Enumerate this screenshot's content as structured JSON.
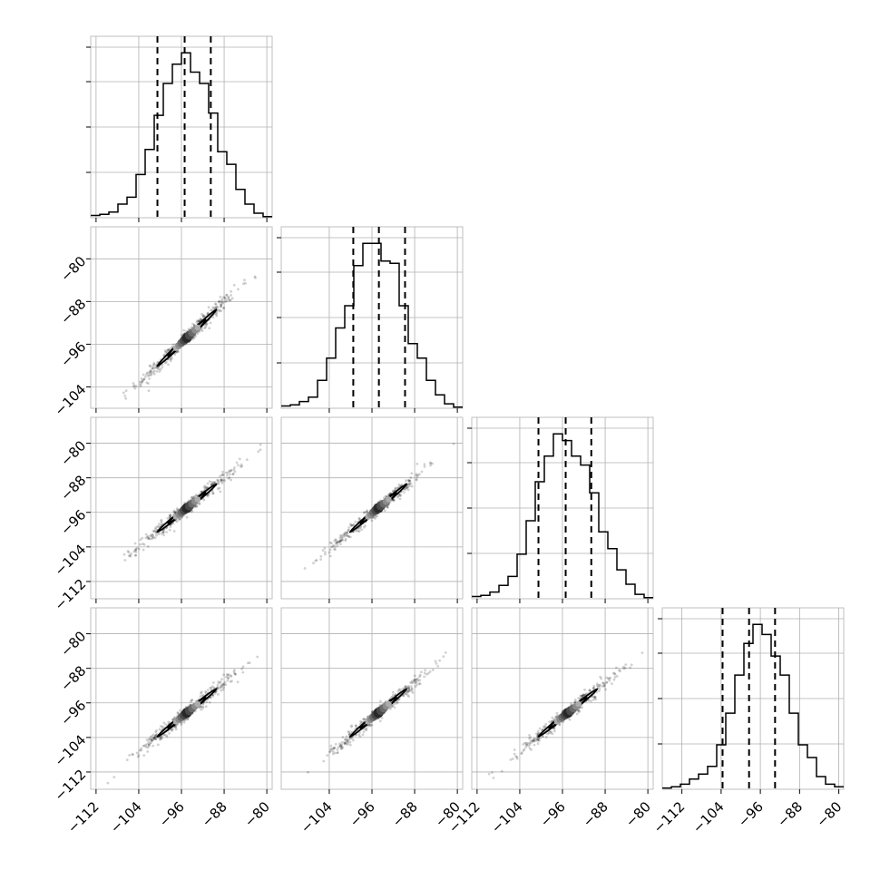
{
  "chart_data": {
    "type": "corner",
    "title": "",
    "n_params": 4,
    "parameter_labels": [
      "",
      "",
      "",
      ""
    ],
    "grid": true,
    "colors": {
      "line": "#000000",
      "grid": "#b0b0b0",
      "frame": "#bfbfbf",
      "background": "#ffffff"
    },
    "xlims": [
      [
        -113,
        -79
      ],
      [
        -113,
        -79
      ],
      [
        -113,
        -79
      ],
      [
        -116,
        -79
      ]
    ],
    "ylims": [
      [
        -108,
        -74
      ],
      [
        -116,
        -74
      ]
    ],
    "y_tick_labels": [
      {
        "values": [
          -80,
          -88,
          -96,
          -104
        ],
        "labels": [
          "−80",
          "−88",
          "−96",
          "−104"
        ]
      },
      {
        "values": [
          -80,
          -88,
          -96,
          -104,
          -112
        ],
        "labels": [
          "−80",
          "−88",
          "−96",
          "−104",
          "−112"
        ]
      },
      {
        "values": [
          -80,
          -88,
          -96,
          -104,
          -112
        ],
        "labels": [
          "−80",
          "−88",
          "−96",
          "−104",
          "−112"
        ]
      }
    ],
    "x_tick_labels": [
      {
        "values": [
          -112,
          -104,
          -96,
          -88,
          -80
        ],
        "labels": [
          "−112",
          "−104",
          "−96",
          "−88",
          "−80"
        ]
      },
      {
        "values": [
          -104,
          -96,
          -88,
          -80
        ],
        "labels": [
          "−104",
          "−96",
          "−88",
          "−80"
        ]
      },
      {
        "values": [
          -112,
          -104,
          -96,
          -88,
          -80
        ],
        "labels": [
          "−112",
          "−104",
          "−96",
          "−88",
          "−80"
        ]
      },
      {
        "values": [
          -112,
          -104,
          -96,
          -88,
          -80
        ],
        "labels": [
          "−112",
          "−104",
          "−96",
          "−88",
          "−80"
        ]
      }
    ],
    "histograms": [
      {
        "param": 0,
        "bin_edges": [
          -113,
          -111.3,
          -109.6,
          -107.9,
          -106.2,
          -104.5,
          -102.8,
          -101.1,
          -99.4,
          -97.7,
          -96,
          -94.3,
          -92.6,
          -90.9,
          -89.2,
          -87.5,
          -85.8,
          -84.1,
          -82.4,
          -80.7,
          -79
        ],
        "counts": [
          2,
          3,
          5,
          12,
          18,
          38,
          60,
          90,
          118,
          135,
          145,
          128,
          118,
          92,
          58,
          47,
          25,
          12,
          4,
          1
        ],
        "quantiles": [
          -100.5,
          -95.4,
          -90.5
        ]
      },
      {
        "param": 1,
        "bin_edges": [
          -113,
          -111.3,
          -109.6,
          -107.9,
          -106.2,
          -104.5,
          -102.8,
          -101.1,
          -99.4,
          -97.7,
          -96,
          -94.3,
          -92.6,
          -90.9,
          -89.2,
          -87.5,
          -85.8,
          -84.1,
          -82.4,
          -80.7,
          -79
        ],
        "counts": [
          2,
          3,
          6,
          10,
          25,
          45,
          72,
          92,
          128,
          148,
          148,
          132,
          130,
          92,
          58,
          45,
          25,
          12,
          4,
          1
        ],
        "quantiles": [
          -99.5,
          -94.7,
          -89.8
        ]
      },
      {
        "param": 2,
        "bin_edges": [
          -113,
          -111.3,
          -109.6,
          -107.9,
          -106.2,
          -104.5,
          -102.8,
          -101.1,
          -99.4,
          -97.7,
          -96,
          -94.3,
          -92.6,
          -90.9,
          -89.2,
          -87.5,
          -85.8,
          -84.1,
          -82.4,
          -80.7,
          -79
        ],
        "counts": [
          2,
          3,
          6,
          12,
          20,
          40,
          70,
          105,
          128,
          148,
          142,
          128,
          120,
          95,
          60,
          45,
          26,
          13,
          4,
          1
        ],
        "quantiles": [
          -100.5,
          -95.4,
          -90.6
        ]
      },
      {
        "param": 3,
        "bin_edges": [
          -116,
          -114.15,
          -112.3,
          -110.45,
          -108.6,
          -106.75,
          -104.9,
          -103.05,
          -101.2,
          -99.35,
          -97.5,
          -95.65,
          -93.8,
          -91.95,
          -90.1,
          -88.25,
          -86.4,
          -84.55,
          -82.7,
          -80.85,
          -79
        ],
        "counts": [
          1,
          2,
          4,
          8,
          12,
          18,
          35,
          60,
          90,
          115,
          130,
          122,
          105,
          90,
          60,
          35,
          25,
          10,
          4,
          2
        ],
        "quantiles": [
          -103.7,
          -98.3,
          -93.0
        ]
      }
    ],
    "scatter_panels": [
      {
        "x_param": 0,
        "y_param": 1,
        "mean": [
          -95.0,
          -94.8
        ],
        "sd": [
          4.6,
          4.4
        ],
        "rho": 0.985
      },
      {
        "x_param": 0,
        "y_param": 2,
        "mean": [
          -95.0,
          -95.0
        ],
        "sd": [
          4.6,
          4.6
        ],
        "rho": 0.985
      },
      {
        "x_param": 1,
        "y_param": 2,
        "mean": [
          -94.8,
          -95.0
        ],
        "sd": [
          4.4,
          4.6
        ],
        "rho": 0.985
      },
      {
        "x_param": 0,
        "y_param": 3,
        "mean": [
          -95.0,
          -98.3
        ],
        "sd": [
          4.6,
          4.6
        ],
        "rho": 0.985
      },
      {
        "x_param": 1,
        "y_param": 3,
        "mean": [
          -94.8,
          -98.3
        ],
        "sd": [
          4.4,
          4.6
        ],
        "rho": 0.985
      },
      {
        "x_param": 2,
        "y_param": 3,
        "mean": [
          -95.0,
          -98.3
        ],
        "sd": [
          4.6,
          4.6
        ],
        "rho": 0.985
      }
    ]
  }
}
